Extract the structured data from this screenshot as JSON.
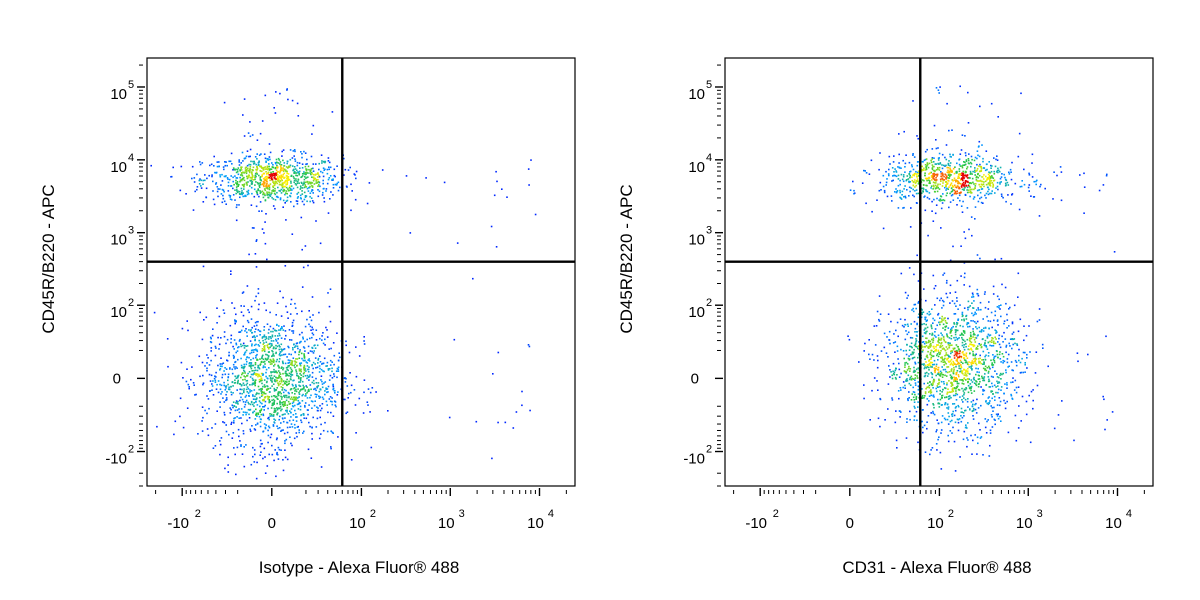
{
  "chart_data": [
    {
      "type": "scatter",
      "subtype": "flow-cytometry-density-dot-plot",
      "xlabel": "Isotype - Alexa Fluor® 488",
      "ylabel": "CD45R/B220 - APC",
      "x_scale": "biexponential",
      "y_scale": "biexponential",
      "x_ticks": [
        {
          "value": -100,
          "base": "-10",
          "exp": "2"
        },
        {
          "value": 0,
          "base": "0",
          "exp": ""
        },
        {
          "value": 100,
          "base": "10",
          "exp": "2"
        },
        {
          "value": 1000,
          "base": "10",
          "exp": "3"
        },
        {
          "value": 10000,
          "base": "10",
          "exp": "4"
        }
      ],
      "y_ticks": [
        {
          "value": -100,
          "base": "-10",
          "exp": "2"
        },
        {
          "value": 0,
          "base": "0",
          "exp": ""
        },
        {
          "value": 100,
          "base": "10",
          "exp": "2"
        },
        {
          "value": 1000,
          "base": "10",
          "exp": "3"
        },
        {
          "value": 10000,
          "base": "10",
          "exp": "4"
        },
        {
          "value": 100000,
          "base": "10",
          "exp": "5"
        }
      ],
      "xlim": [
        -250,
        25000
      ],
      "ylim": [
        -300,
        250000
      ],
      "quadrant_gate": {
        "x": 60,
        "y": 400
      },
      "populations": [
        {
          "name": "",
          "x_center": 0,
          "y_center": 5500,
          "count": 900
        },
        {
          "name": "",
          "x_center": 0,
          "y_center": 0,
          "count": 1500
        }
      ],
      "grid": false,
      "legend": "none"
    },
    {
      "type": "scatter",
      "subtype": "flow-cytometry-density-dot-plot",
      "xlabel": "CD31 - Alexa Fluor® 488",
      "ylabel": "CD45R/B220 - APC",
      "x_scale": "biexponential",
      "y_scale": "biexponential",
      "x_ticks": [
        {
          "value": -100,
          "base": "-10",
          "exp": "2"
        },
        {
          "value": 0,
          "base": "0",
          "exp": ""
        },
        {
          "value": 100,
          "base": "10",
          "exp": "2"
        },
        {
          "value": 1000,
          "base": "10",
          "exp": "3"
        },
        {
          "value": 10000,
          "base": "10",
          "exp": "4"
        }
      ],
      "y_ticks": [
        {
          "value": -100,
          "base": "-10",
          "exp": "2"
        },
        {
          "value": 0,
          "base": "0",
          "exp": ""
        },
        {
          "value": 100,
          "base": "10",
          "exp": "2"
        },
        {
          "value": 1000,
          "base": "10",
          "exp": "3"
        },
        {
          "value": 10000,
          "base": "10",
          "exp": "4"
        },
        {
          "value": 100000,
          "base": "10",
          "exp": "5"
        }
      ],
      "xlim": [
        -250,
        25000
      ],
      "ylim": [
        -300,
        250000
      ],
      "quadrant_gate": {
        "x": 60,
        "y": 400
      },
      "populations": [
        {
          "name": "",
          "x_center": 130,
          "y_center": 5500,
          "count": 800
        },
        {
          "name": "",
          "x_center": 140,
          "y_center": 10,
          "count": 1500
        }
      ],
      "grid": false,
      "legend": "none"
    }
  ],
  "colors": {
    "low_density": "#0000ff",
    "mid_density": "#33cc33",
    "high_density": "#ffff00",
    "peak_density": "#ff0000"
  }
}
